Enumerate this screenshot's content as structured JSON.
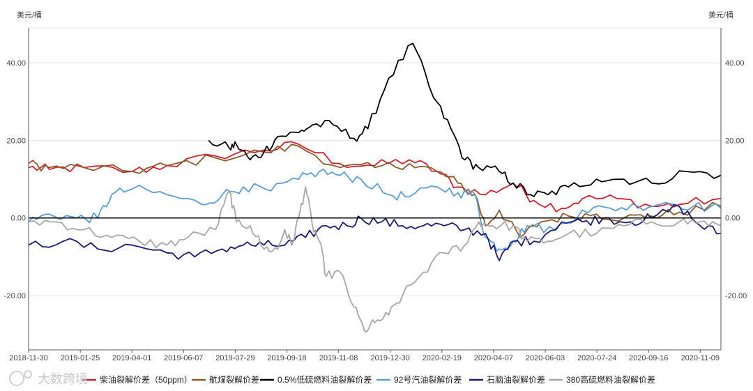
{
  "chart_data": {
    "type": "line",
    "unit_left": "美元/桶",
    "unit_right": "美元/桶",
    "ylim": [
      -34,
      49
    ],
    "y_ticks": [
      -20,
      0,
      20,
      40
    ],
    "y_tick_labels": [
      "-20.00",
      "0.00",
      "20.00",
      "40.00"
    ],
    "x_tick_labels": [
      "2018-11-30",
      "2019-01-25",
      "2019-04-01",
      "2019-06-07",
      "2019-07-29",
      "2019-09-18",
      "2019-11-08",
      "2019-12-30",
      "2020-02-19",
      "2020-04-07",
      "2020-06-03",
      "2020-07-24",
      "2020-09-16",
      "2020-11-09"
    ],
    "legend_position": "bottom",
    "watermark": "大数跨境",
    "series": [
      {
        "name": "柴油裂解价差（50ppm）",
        "color": "#d0202e",
        "points": [
          [
            0,
            13
          ],
          [
            0.03,
            12.5
          ],
          [
            0.08,
            13
          ],
          [
            0.15,
            12
          ],
          [
            0.2,
            13.5
          ],
          [
            0.27,
            16
          ],
          [
            0.34,
            17.5
          ],
          [
            0.39,
            19
          ],
          [
            0.45,
            14
          ],
          [
            0.5,
            13.5
          ],
          [
            0.55,
            15
          ],
          [
            0.59,
            12
          ],
          [
            0.62,
            8
          ],
          [
            0.66,
            6
          ],
          [
            0.7,
            9
          ],
          [
            0.73,
            4.5
          ],
          [
            0.77,
            2.5
          ],
          [
            0.8,
            5
          ],
          [
            0.85,
            5
          ],
          [
            0.9,
            3
          ],
          [
            0.94,
            3.5
          ],
          [
            1,
            5
          ]
        ]
      },
      {
        "name": "航煤裂解价差",
        "color": "#8b5a2b",
        "points": [
          [
            0,
            14
          ],
          [
            0.03,
            13
          ],
          [
            0.08,
            13
          ],
          [
            0.15,
            12
          ],
          [
            0.2,
            13.5
          ],
          [
            0.27,
            15.5
          ],
          [
            0.34,
            17
          ],
          [
            0.39,
            18.5
          ],
          [
            0.45,
            13
          ],
          [
            0.5,
            13
          ],
          [
            0.55,
            14
          ],
          [
            0.59,
            12
          ],
          [
            0.62,
            9
          ],
          [
            0.645,
            6
          ],
          [
            0.66,
            -2
          ],
          [
            0.68,
            2
          ],
          [
            0.71,
            -5
          ],
          [
            0.74,
            -1
          ],
          [
            0.78,
            0.5
          ],
          [
            0.82,
            1
          ],
          [
            0.86,
            0
          ],
          [
            0.9,
            0.5
          ],
          [
            0.94,
            1.5
          ],
          [
            1,
            3
          ]
        ]
      },
      {
        "name": "0.5%低硫燃料油裂解价差",
        "color": "#000000",
        "points": [
          [
            0.26,
            20
          ],
          [
            0.29,
            18
          ],
          [
            0.3,
            19
          ],
          [
            0.32,
            15
          ],
          [
            0.34,
            17
          ],
          [
            0.36,
            21
          ],
          [
            0.39,
            22
          ],
          [
            0.41,
            24
          ],
          [
            0.44,
            24
          ],
          [
            0.47,
            20.5
          ],
          [
            0.49,
            23
          ],
          [
            0.52,
            36
          ],
          [
            0.555,
            45
          ],
          [
            0.585,
            31
          ],
          [
            0.61,
            23
          ],
          [
            0.63,
            15
          ],
          [
            0.65,
            13
          ],
          [
            0.68,
            12
          ],
          [
            0.7,
            9
          ],
          [
            0.725,
            6
          ],
          [
            0.75,
            6
          ],
          [
            0.78,
            8
          ],
          [
            0.82,
            10
          ],
          [
            0.86,
            10
          ],
          [
            0.9,
            9
          ],
          [
            0.95,
            12
          ],
          [
            1,
            11
          ]
        ]
      },
      {
        "name": "92号汽油裂解价差",
        "color": "#5b9bd5",
        "points": [
          [
            0,
            -1
          ],
          [
            0.03,
            1
          ],
          [
            0.07,
            0
          ],
          [
            0.1,
            0
          ],
          [
            0.12,
            6
          ],
          [
            0.15,
            7.5
          ],
          [
            0.2,
            6
          ],
          [
            0.25,
            3.5
          ],
          [
            0.28,
            6
          ],
          [
            0.31,
            8
          ],
          [
            0.35,
            7
          ],
          [
            0.39,
            10
          ],
          [
            0.42,
            12
          ],
          [
            0.45,
            11
          ],
          [
            0.48,
            10
          ],
          [
            0.52,
            6
          ],
          [
            0.55,
            5.5
          ],
          [
            0.59,
            8
          ],
          [
            0.62,
            6.5
          ],
          [
            0.645,
            6
          ],
          [
            0.66,
            -5
          ],
          [
            0.68,
            -8
          ],
          [
            0.7,
            -6
          ],
          [
            0.72,
            -2
          ],
          [
            0.76,
            -3
          ],
          [
            0.8,
            2
          ],
          [
            0.84,
            2.5
          ],
          [
            0.88,
            3
          ],
          [
            0.92,
            4
          ],
          [
            0.96,
            3
          ],
          [
            1,
            2.5
          ]
        ]
      },
      {
        "name": "石脑油裂解价差",
        "color": "#1a1a6e",
        "points": [
          [
            0,
            -7
          ],
          [
            0.05,
            -6
          ],
          [
            0.1,
            -8
          ],
          [
            0.15,
            -7
          ],
          [
            0.2,
            -9
          ],
          [
            0.24,
            -10
          ],
          [
            0.28,
            -8
          ],
          [
            0.31,
            -7
          ],
          [
            0.34,
            -7
          ],
          [
            0.37,
            -7
          ],
          [
            0.4,
            -5
          ],
          [
            0.43,
            -2
          ],
          [
            0.46,
            -2
          ],
          [
            0.48,
            0
          ],
          [
            0.51,
            -1
          ],
          [
            0.54,
            -2
          ],
          [
            0.57,
            -2
          ],
          [
            0.6,
            -2
          ],
          [
            0.63,
            -3
          ],
          [
            0.66,
            -4
          ],
          [
            0.68,
            -11
          ],
          [
            0.7,
            -6
          ],
          [
            0.73,
            -6
          ],
          [
            0.77,
            -1
          ],
          [
            0.8,
            -1
          ],
          [
            0.83,
            0
          ],
          [
            0.87,
            -1
          ],
          [
            0.9,
            0
          ],
          [
            0.94,
            3
          ],
          [
            0.97,
            -2
          ],
          [
            1,
            -4
          ]
        ]
      },
      {
        "name": "380高硫燃料油裂解价差",
        "color": "#a6a6a6",
        "points": [
          [
            0,
            -1
          ],
          [
            0.04,
            -1
          ],
          [
            0.08,
            -3
          ],
          [
            0.12,
            -5
          ],
          [
            0.16,
            -6
          ],
          [
            0.2,
            -7
          ],
          [
            0.23,
            -5
          ],
          [
            0.27,
            -3
          ],
          [
            0.29,
            7
          ],
          [
            0.3,
            -1
          ],
          [
            0.32,
            -2
          ],
          [
            0.34,
            -8
          ],
          [
            0.36,
            -8
          ],
          [
            0.37,
            -3
          ],
          [
            0.38,
            -7
          ],
          [
            0.39,
            0
          ],
          [
            0.4,
            8
          ],
          [
            0.41,
            -2
          ],
          [
            0.42,
            -6
          ],
          [
            0.43,
            -15
          ],
          [
            0.45,
            -14
          ],
          [
            0.47,
            -23
          ],
          [
            0.485,
            -29
          ],
          [
            0.5,
            -27
          ],
          [
            0.52,
            -25
          ],
          [
            0.54,
            -20
          ],
          [
            0.57,
            -14
          ],
          [
            0.6,
            -9
          ],
          [
            0.63,
            -7
          ],
          [
            0.65,
            -1
          ],
          [
            0.67,
            -2
          ],
          [
            0.7,
            -2
          ],
          [
            0.72,
            -6
          ],
          [
            0.75,
            -6
          ],
          [
            0.78,
            -4
          ],
          [
            0.82,
            -4
          ],
          [
            0.86,
            -2
          ],
          [
            0.9,
            -1
          ],
          [
            0.94,
            -1
          ],
          [
            0.97,
            -1
          ],
          [
            1,
            -2
          ]
        ]
      }
    ]
  }
}
